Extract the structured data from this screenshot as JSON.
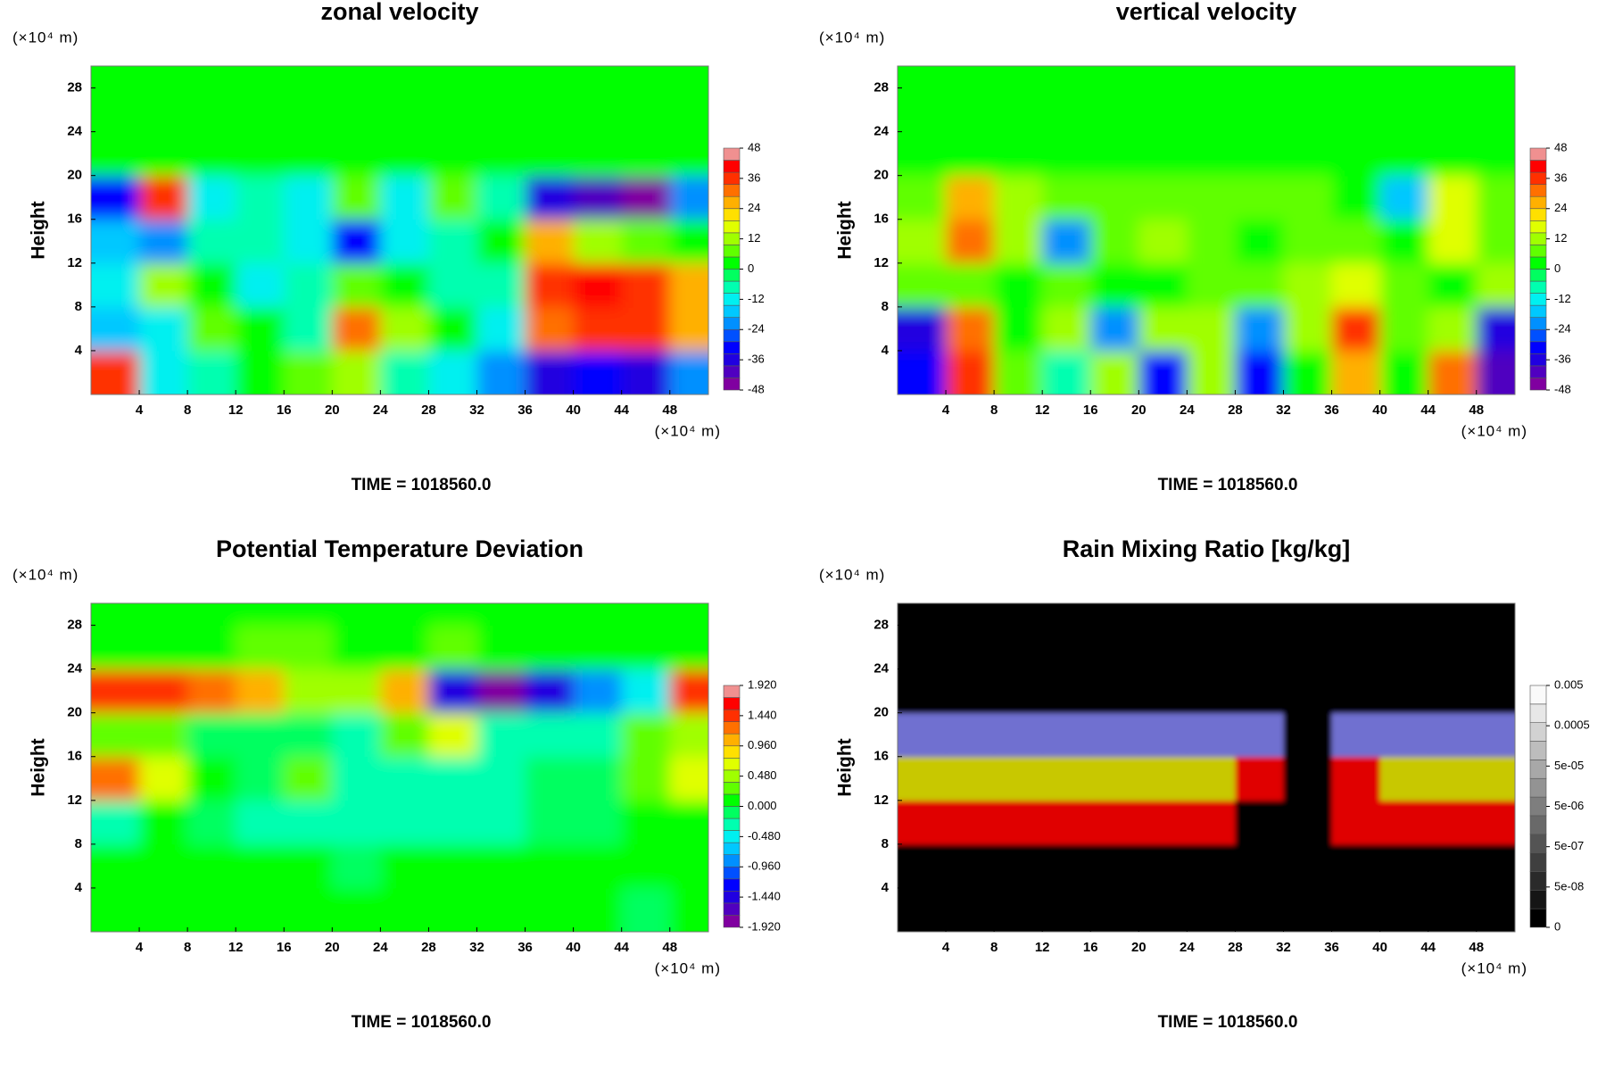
{
  "chart_data": [
    {
      "type": "heatmap",
      "title": "zonal velocity",
      "y_unit_label": "(×10⁴ m)",
      "x_unit_label": "(×10⁴ m)",
      "ylabel": "Height",
      "footer": "TIME = 1018560.0",
      "xlim": [
        0,
        51.2
      ],
      "ylim": [
        0,
        30
      ],
      "xticks": [
        4,
        8,
        12,
        16,
        20,
        24,
        28,
        32,
        36,
        40,
        44,
        48
      ],
      "yticks": [
        4,
        8,
        12,
        16,
        20,
        24,
        28
      ],
      "x": [
        2,
        6,
        10,
        14,
        18,
        22,
        26,
        30,
        34,
        38,
        42,
        46,
        50
      ],
      "y": [
        2,
        6,
        10,
        14,
        18,
        22,
        26,
        30
      ],
      "z": [
        [
          36,
          -12,
          -6,
          0,
          6,
          12,
          -6,
          -12,
          -24,
          -36,
          -30,
          -36,
          -24
        ],
        [
          -18,
          -12,
          6,
          0,
          -6,
          30,
          12,
          0,
          -12,
          30,
          36,
          36,
          24
        ],
        [
          -12,
          12,
          0,
          -12,
          -6,
          6,
          0,
          -6,
          -6,
          36,
          42,
          36,
          24
        ],
        [
          -18,
          -24,
          -6,
          -6,
          -12,
          -30,
          -12,
          -6,
          0,
          24,
          12,
          6,
          0
        ],
        [
          -30,
          36,
          -12,
          -6,
          -12,
          6,
          -12,
          6,
          -6,
          -36,
          -42,
          -48,
          -24
        ],
        [
          0,
          0,
          0,
          0,
          0,
          0,
          0,
          0,
          0,
          0,
          0,
          0,
          0
        ],
        [
          0,
          0,
          0,
          0,
          0,
          0,
          0,
          0,
          0,
          0,
          0,
          0,
          0
        ],
        [
          0,
          0,
          0,
          0,
          0,
          0,
          0,
          0,
          0,
          0,
          0,
          0,
          0
        ]
      ],
      "zlim": [
        -48,
        48
      ],
      "colorbar": {
        "colors": [
          "#8000a0",
          "#5000c0",
          "#2000e0",
          "#0000ff",
          "#0050ff",
          "#0090ff",
          "#00c8ff",
          "#00f0f0",
          "#00ffb0",
          "#00ff60",
          "#00ff00",
          "#60ff00",
          "#a0ff00",
          "#e0ff00",
          "#ffe000",
          "#ffb000",
          "#ff7000",
          "#ff3000",
          "#ff0000",
          "#f09090"
        ],
        "ticks": [
          -48,
          -36,
          -24,
          -12,
          0,
          12,
          24,
          36,
          48
        ]
      }
    },
    {
      "type": "heatmap",
      "title": "vertical velocity",
      "y_unit_label": "(×10⁴ m)",
      "x_unit_label": "(×10⁴ m)",
      "ylabel": "Height",
      "footer": "TIME = 1018560.0",
      "xlim": [
        0,
        51.2
      ],
      "ylim": [
        0,
        30
      ],
      "xticks": [
        4,
        8,
        12,
        16,
        20,
        24,
        28,
        32,
        36,
        40,
        44,
        48
      ],
      "yticks": [
        4,
        8,
        12,
        16,
        20,
        24,
        28
      ],
      "x": [
        2,
        6,
        10,
        14,
        18,
        22,
        26,
        30,
        34,
        38,
        42,
        46,
        50
      ],
      "y": [
        2,
        6,
        10,
        14,
        18,
        22,
        26,
        30
      ],
      "z": [
        [
          -30,
          36,
          6,
          -6,
          12,
          -30,
          12,
          -30,
          0,
          24,
          0,
          30,
          -42
        ],
        [
          -36,
          30,
          0,
          12,
          -24,
          12,
          12,
          -24,
          12,
          36,
          6,
          12,
          -36
        ],
        [
          6,
          6,
          0,
          6,
          0,
          0,
          6,
          6,
          12,
          18,
          6,
          0,
          12
        ],
        [
          12,
          30,
          12,
          -24,
          6,
          12,
          6,
          0,
          6,
          6,
          0,
          18,
          6
        ],
        [
          6,
          24,
          12,
          6,
          6,
          6,
          6,
          6,
          6,
          0,
          -18,
          18,
          6
        ],
        [
          0,
          0,
          0,
          0,
          0,
          0,
          0,
          0,
          0,
          0,
          0,
          0,
          0
        ],
        [
          0,
          0,
          0,
          0,
          0,
          0,
          0,
          0,
          0,
          0,
          0,
          0,
          0
        ],
        [
          0,
          0,
          0,
          0,
          0,
          0,
          0,
          0,
          0,
          0,
          0,
          0,
          0
        ]
      ],
      "zlim": [
        -48,
        48
      ],
      "colorbar": {
        "colors": [
          "#8000a0",
          "#5000c0",
          "#2000e0",
          "#0000ff",
          "#0050ff",
          "#0090ff",
          "#00c8ff",
          "#00f0f0",
          "#00ffb0",
          "#00ff60",
          "#00ff00",
          "#60ff00",
          "#a0ff00",
          "#e0ff00",
          "#ffe000",
          "#ffb000",
          "#ff7000",
          "#ff3000",
          "#ff0000",
          "#f09090"
        ],
        "ticks": [
          -48,
          -36,
          -24,
          -12,
          0,
          12,
          24,
          36,
          48
        ]
      }
    },
    {
      "type": "heatmap",
      "title": "Potential Temperature Deviation",
      "y_unit_label": "(×10⁴ m)",
      "x_unit_label": "(×10⁴ m)",
      "ylabel": "Height",
      "footer": "TIME = 1018560.0",
      "xlim": [
        0,
        51.2
      ],
      "ylim": [
        0,
        30
      ],
      "xticks": [
        4,
        8,
        12,
        16,
        20,
        24,
        28,
        32,
        36,
        40,
        44,
        48
      ],
      "yticks": [
        4,
        8,
        12,
        16,
        20,
        24,
        28
      ],
      "x": [
        2,
        6,
        10,
        14,
        18,
        22,
        26,
        30,
        34,
        38,
        42,
        46,
        50
      ],
      "y": [
        2,
        6,
        10,
        14,
        18,
        22,
        26,
        30
      ],
      "z": [
        [
          0,
          0,
          0.1,
          0,
          0,
          0,
          0,
          0,
          0,
          0,
          0,
          -0.1,
          0
        ],
        [
          0,
          0,
          0,
          0,
          0,
          -0.1,
          0,
          0,
          0,
          0,
          0,
          0,
          0
        ],
        [
          -0.2,
          0,
          -0.1,
          -0.2,
          -0.2,
          -0.2,
          -0.2,
          -0.2,
          -0.2,
          -0.1,
          -0.1,
          0,
          0
        ],
        [
          1.2,
          0.6,
          0.1,
          -0.1,
          0.2,
          -0.2,
          -0.2,
          -0.2,
          -0.2,
          -0.1,
          -0.1,
          0.3,
          0.6
        ],
        [
          0.2,
          0.2,
          -0.1,
          -0.1,
          -0.1,
          -0.2,
          0.3,
          0.6,
          -0.2,
          -0.2,
          -0.2,
          0.2,
          0.4
        ],
        [
          1.44,
          1.44,
          1.2,
          0.96,
          0.48,
          0.48,
          0.96,
          -1.44,
          -1.92,
          -1.44,
          -0.96,
          -0.48,
          1.44
        ],
        [
          0.1,
          0.1,
          0.1,
          0.2,
          0.2,
          0.1,
          0.1,
          0.2,
          0.1,
          0.1,
          0.1,
          0.1,
          0.1
        ],
        [
          0,
          0,
          0,
          0,
          0,
          0,
          0,
          0,
          0,
          0,
          0,
          0,
          0
        ]
      ],
      "zlim": [
        -1.92,
        1.92
      ],
      "colorbar": {
        "colors": [
          "#8000a0",
          "#5000c0",
          "#2000e0",
          "#0000ff",
          "#0050ff",
          "#0090ff",
          "#00c8ff",
          "#00f0f0",
          "#00ffb0",
          "#00ff60",
          "#00ff00",
          "#60ff00",
          "#a0ff00",
          "#e0ff00",
          "#ffe000",
          "#ffb000",
          "#ff7000",
          "#ff3000",
          "#ff0000",
          "#f09090"
        ],
        "ticks": [
          {
            "value": -1.92,
            "label": "-1.920"
          },
          {
            "value": -1.44,
            "label": "-1.440"
          },
          {
            "value": -0.96,
            "label": "-0.960"
          },
          {
            "value": -0.48,
            "label": "-0.480"
          },
          {
            "value": 0,
            "label": "0.000"
          },
          {
            "value": 0.48,
            "label": "0.480"
          },
          {
            "value": 0.96,
            "label": "0.960"
          },
          {
            "value": 1.44,
            "label": "1.440"
          },
          {
            "value": 1.92,
            "label": "1.920"
          }
        ]
      }
    },
    {
      "type": "heatmap",
      "title": "Rain Mixing Ratio [kg/kg]",
      "y_unit_label": "(×10⁴ m)",
      "x_unit_label": "(×10⁴ m)",
      "ylabel": "Height",
      "footer": "TIME = 1018560.0",
      "xlim": [
        0,
        51.2
      ],
      "ylim": [
        0,
        30
      ],
      "xticks": [
        4,
        8,
        12,
        16,
        20,
        24,
        28,
        32,
        36,
        40,
        44,
        48
      ],
      "yticks": [
        4,
        8,
        12,
        16,
        20,
        24,
        28
      ],
      "x": [
        2,
        6,
        10,
        14,
        18,
        22,
        26,
        30,
        34,
        38,
        42,
        46,
        50
      ],
      "y": [
        2,
        6,
        10,
        14,
        18,
        22,
        26,
        30
      ],
      "z": [
        [
          0,
          0,
          0,
          0,
          0,
          0,
          0,
          0,
          0,
          0,
          0,
          0,
          0
        ],
        [
          0,
          0,
          0,
          0,
          0,
          0,
          0,
          0,
          0,
          0,
          0,
          0,
          0
        ],
        [
          1e-06,
          1e-06,
          1e-06,
          1e-06,
          1e-06,
          1e-06,
          1e-06,
          0,
          0,
          1e-06,
          1e-06,
          1e-06,
          1e-06
        ],
        [
          1e-05,
          1e-05,
          1e-05,
          1e-05,
          1e-05,
          1e-05,
          1e-05,
          1e-06,
          0,
          1e-06,
          1e-05,
          1e-05,
          1e-05
        ],
        [
          0.0001,
          0.0002,
          0.0001,
          0.0001,
          0.0001,
          0.0001,
          0.0001,
          0.0001,
          0,
          0.0001,
          0.0002,
          0.0001,
          0.0001
        ],
        [
          0,
          0,
          0,
          0,
          0,
          0,
          0,
          0,
          0,
          0,
          0,
          0,
          0
        ],
        [
          0,
          0,
          0,
          0,
          0,
          0,
          0,
          0,
          0,
          0,
          0,
          0,
          0
        ],
        [
          0,
          0,
          0,
          0,
          0,
          0,
          0,
          0,
          0,
          0,
          0,
          0,
          0
        ]
      ],
      "zscale": "levels",
      "levels": [
        0,
        5e-08,
        5e-07,
        5e-06,
        5e-05,
        0.0005,
        0.005
      ],
      "level_colors": [
        "#000000",
        "#500000",
        "#e00000",
        "#c8c800",
        "#7070d0",
        "#c8c8f0",
        "#ffffff"
      ],
      "colorbar": {
        "colors": [
          "#000000",
          "#151515",
          "#2a2a2a",
          "#3f3f3f",
          "#545454",
          "#696969",
          "#7e7e7e",
          "#939393",
          "#a8a8a8",
          "#bdbdbd",
          "#d2d2d2",
          "#e7e7e7",
          "#fafafa"
        ],
        "scale": "index",
        "ticks": [
          0,
          {
            "value": 5e-08,
            "label": "5e-08"
          },
          {
            "value": 5e-07,
            "label": "5e-07"
          },
          {
            "value": 5e-06,
            "label": "5e-06"
          },
          {
            "value": 5e-05,
            "label": "5e-05"
          },
          0.0005,
          0.005
        ]
      }
    }
  ]
}
